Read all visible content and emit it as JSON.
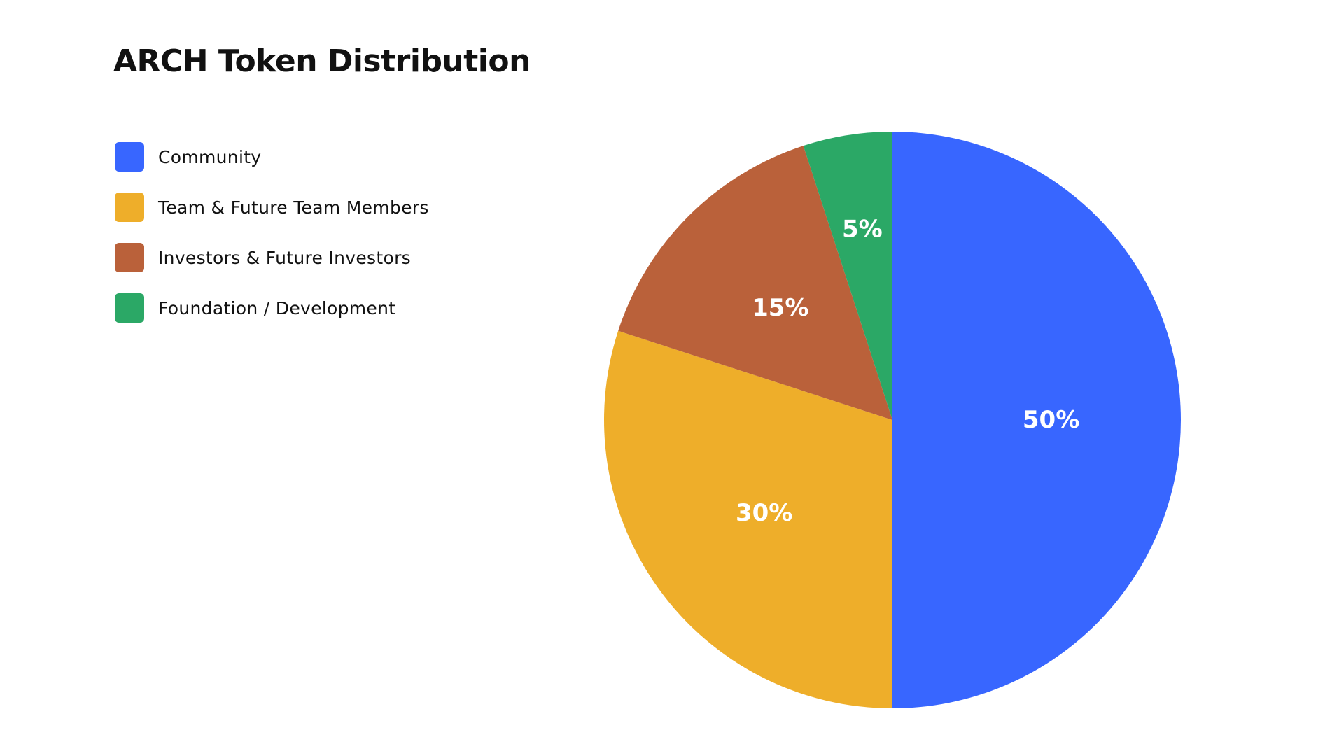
{
  "chart_data": {
    "type": "pie",
    "title": "ARCH Token Distribution",
    "legend_position": "left",
    "slices": [
      {
        "label": "Community",
        "value": 50,
        "display": "50%",
        "color": "#3866FF"
      },
      {
        "label": "Team & Future Team Members",
        "value": 30,
        "display": "30%",
        "color": "#EEAE2A"
      },
      {
        "label": "Investors & Future Investors",
        "value": 15,
        "display": "15%",
        "color": "#BA613A"
      },
      {
        "label": "Foundation / Development",
        "value": 5,
        "display": "5%",
        "color": "#2BA866"
      }
    ]
  }
}
